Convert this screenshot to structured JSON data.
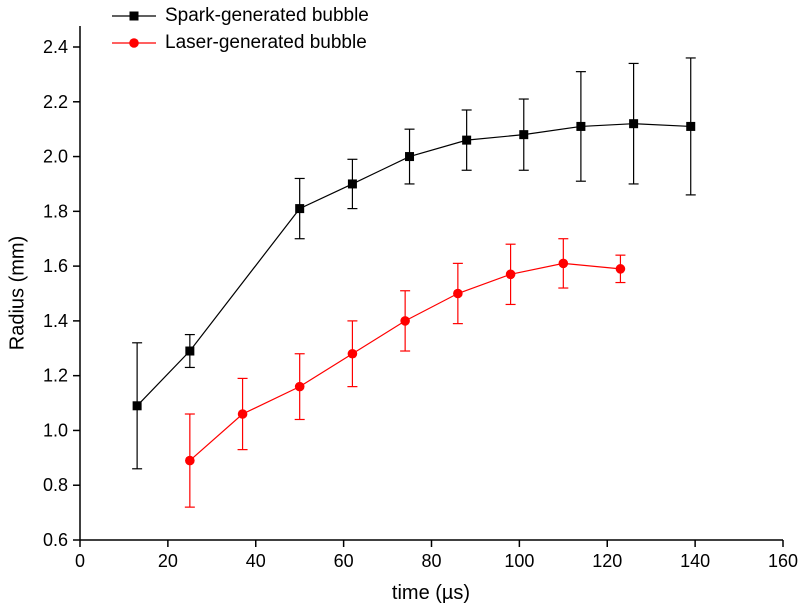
{
  "chart_data": {
    "type": "line",
    "title": "",
    "xlabel": "time (µs)",
    "ylabel": "Radius (mm)",
    "xlim": [
      0,
      160
    ],
    "ylim": [
      0.6,
      2.4
    ],
    "xticks": [
      0,
      20,
      40,
      60,
      80,
      100,
      120,
      140,
      160
    ],
    "yticks": [
      0.6,
      0.8,
      1.0,
      1.2,
      1.4,
      1.6,
      1.8,
      2.0,
      2.2,
      2.4
    ],
    "grid": false,
    "legend_position": "top-left",
    "axis_color": "#000000",
    "series": [
      {
        "name": "Spark-generated bubble",
        "color": "#000000",
        "marker": "square",
        "x": [
          13,
          25,
          50,
          62,
          75,
          88,
          101,
          114,
          126,
          139
        ],
        "y": [
          1.09,
          1.29,
          1.81,
          1.9,
          2.0,
          2.06,
          2.08,
          2.11,
          2.12,
          2.11
        ],
        "yerr": [
          0.23,
          0.06,
          0.11,
          0.09,
          0.1,
          0.11,
          0.13,
          0.2,
          0.22,
          0.25
        ]
      },
      {
        "name": "Laser-generated bubble",
        "color": "#ff0000",
        "marker": "circle",
        "x": [
          25,
          37,
          50,
          62,
          74,
          86,
          98,
          110,
          123
        ],
        "y": [
          0.89,
          1.06,
          1.16,
          1.28,
          1.4,
          1.5,
          1.57,
          1.61,
          1.59
        ],
        "yerr": [
          0.17,
          0.13,
          0.12,
          0.12,
          0.11,
          0.11,
          0.11,
          0.09,
          0.05
        ]
      }
    ]
  }
}
